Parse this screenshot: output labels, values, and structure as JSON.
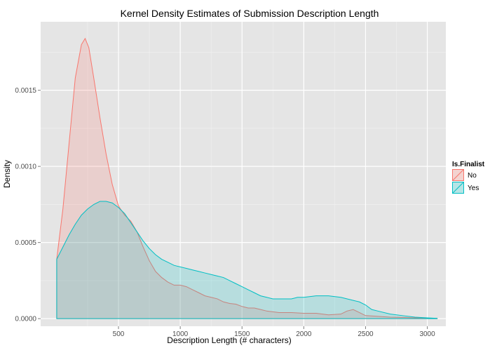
{
  "chart_data": {
    "type": "area",
    "title": "Kernel Density Estimates of Submission Description Length",
    "xlabel": "Description Length (# characters)",
    "ylabel": "Density",
    "xlim": [
      -130,
      3150
    ],
    "ylim": [
      -5e-05,
      0.00195
    ],
    "x_ticks": [
      500,
      1000,
      1500,
      2000,
      2500,
      3000
    ],
    "x_tick_labels": [
      "500",
      "1000",
      "1500",
      "2000",
      "2500",
      "3000"
    ],
    "y_ticks": [
      0.0,
      0.0005,
      0.001,
      0.0015
    ],
    "y_tick_labels": [
      "0.0000",
      "0.0005",
      "0.0010",
      "0.0015"
    ],
    "grid": true,
    "legend": {
      "title": "Is.Finalist",
      "position": "right"
    },
    "series": [
      {
        "name": "No",
        "color": "#F8766D",
        "points": [
          [
            0,
            0.00039
          ],
          [
            50,
            0.00072
          ],
          [
            100,
            0.00115
          ],
          [
            150,
            0.00158
          ],
          [
            200,
            0.0018
          ],
          [
            230,
            0.00184
          ],
          [
            260,
            0.00178
          ],
          [
            300,
            0.00158
          ],
          [
            350,
            0.00132
          ],
          [
            400,
            0.00108
          ],
          [
            450,
            0.00088
          ],
          [
            500,
            0.00074
          ],
          [
            550,
            0.00068
          ],
          [
            600,
            0.00064
          ],
          [
            650,
            0.00057
          ],
          [
            700,
            0.00047
          ],
          [
            750,
            0.00038
          ],
          [
            800,
            0.00031
          ],
          [
            850,
            0.00027
          ],
          [
            900,
            0.00024
          ],
          [
            950,
            0.00022
          ],
          [
            1000,
            0.00022
          ],
          [
            1050,
            0.00021
          ],
          [
            1100,
            0.00019
          ],
          [
            1150,
            0.00017
          ],
          [
            1200,
            0.00015
          ],
          [
            1250,
            0.00014
          ],
          [
            1300,
            0.00013
          ],
          [
            1350,
            0.00011
          ],
          [
            1400,
            0.0001
          ],
          [
            1450,
            9.5e-05
          ],
          [
            1500,
            8e-05
          ],
          [
            1550,
            7e-05
          ],
          [
            1600,
            7e-05
          ],
          [
            1650,
            6e-05
          ],
          [
            1700,
            5e-05
          ],
          [
            1800,
            4e-05
          ],
          [
            1900,
            4e-05
          ],
          [
            2000,
            3.5e-05
          ],
          [
            2100,
            3.5e-05
          ],
          [
            2200,
            2.5e-05
          ],
          [
            2300,
            3e-05
          ],
          [
            2350,
            5e-05
          ],
          [
            2400,
            6e-05
          ],
          [
            2450,
            4e-05
          ],
          [
            2500,
            2e-05
          ],
          [
            2600,
            1.5e-05
          ],
          [
            2700,
            1e-05
          ],
          [
            2800,
            8e-06
          ],
          [
            2900,
            5e-06
          ],
          [
            3000,
            3e-06
          ],
          [
            3080,
            2e-06
          ]
        ]
      },
      {
        "name": "Yes",
        "color": "#00BFC4",
        "points": [
          [
            0,
            0.00039
          ],
          [
            50,
            0.00047
          ],
          [
            100,
            0.00055
          ],
          [
            150,
            0.00062
          ],
          [
            200,
            0.00068
          ],
          [
            250,
            0.00072
          ],
          [
            300,
            0.00075
          ],
          [
            350,
            0.00077
          ],
          [
            400,
            0.00077
          ],
          [
            450,
            0.00076
          ],
          [
            500,
            0.00073
          ],
          [
            550,
            0.00069
          ],
          [
            600,
            0.00063
          ],
          [
            650,
            0.00057
          ],
          [
            700,
            0.00051
          ],
          [
            750,
            0.00046
          ],
          [
            800,
            0.00042
          ],
          [
            850,
            0.00039
          ],
          [
            900,
            0.00037
          ],
          [
            950,
            0.00035
          ],
          [
            1000,
            0.00034
          ],
          [
            1050,
            0.00033
          ],
          [
            1100,
            0.00032
          ],
          [
            1150,
            0.00031
          ],
          [
            1200,
            0.0003
          ],
          [
            1250,
            0.00029
          ],
          [
            1300,
            0.00028
          ],
          [
            1350,
            0.00027
          ],
          [
            1400,
            0.00025
          ],
          [
            1450,
            0.00023
          ],
          [
            1500,
            0.00021
          ],
          [
            1550,
            0.00019
          ],
          [
            1600,
            0.00017
          ],
          [
            1650,
            0.00015
          ],
          [
            1700,
            0.00014
          ],
          [
            1750,
            0.00013
          ],
          [
            1800,
            0.00013
          ],
          [
            1850,
            0.00013
          ],
          [
            1900,
            0.00013
          ],
          [
            1950,
            0.00014
          ],
          [
            2000,
            0.00014
          ],
          [
            2100,
            0.00015
          ],
          [
            2200,
            0.00015
          ],
          [
            2300,
            0.00014
          ],
          [
            2400,
            0.00012
          ],
          [
            2450,
            0.00011
          ],
          [
            2500,
            9e-05
          ],
          [
            2550,
            6e-05
          ],
          [
            2600,
            5e-05
          ],
          [
            2700,
            3e-05
          ],
          [
            2800,
            2e-05
          ],
          [
            2900,
            1e-05
          ],
          [
            3000,
            5e-06
          ],
          [
            3080,
            2e-06
          ]
        ]
      }
    ]
  }
}
